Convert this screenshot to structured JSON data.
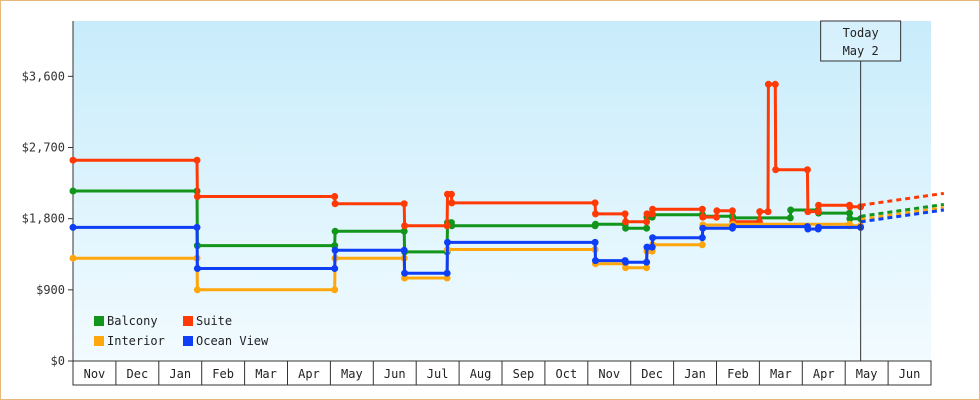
{
  "chart_data": {
    "type": "line",
    "title": "",
    "xlabel": "",
    "ylabel": "",
    "ylim": [
      0,
      4300
    ],
    "y_ticks": [
      {
        "value": 0,
        "label": "$0"
      },
      {
        "value": 900,
        "label": "$900"
      },
      {
        "value": 1800,
        "label": "$1,800"
      },
      {
        "value": 2700,
        "label": "$2,700"
      },
      {
        "value": 3600,
        "label": "$3,600"
      }
    ],
    "x_domain": [
      0,
      20
    ],
    "x_unit": "months from start of Nov (year 1)",
    "months": [
      "Nov",
      "Dec",
      "Jan",
      "Feb",
      "Mar",
      "Apr",
      "May",
      "Jun",
      "Jul",
      "Aug",
      "Sep",
      "Oct",
      "Nov",
      "Dec",
      "Jan",
      "Feb",
      "Mar",
      "Apr",
      "May",
      "Jun"
    ],
    "today": {
      "x": 18.36,
      "line1": "Today",
      "line2": "May 2"
    },
    "legend": {
      "position": "bottom-left"
    },
    "grid": false,
    "series": [
      {
        "name": "Balcony",
        "color": "#11951b",
        "points": [
          [
            0,
            2150
          ],
          [
            2.89,
            2150
          ],
          [
            2.9,
            1460
          ],
          [
            6.1,
            1460
          ],
          [
            6.11,
            1640
          ],
          [
            7.72,
            1640
          ],
          [
            7.73,
            1380
          ],
          [
            8.72,
            1380
          ],
          [
            8.73,
            1750
          ],
          [
            8.82,
            1750
          ],
          [
            8.83,
            1710
          ],
          [
            12.17,
            1710
          ],
          [
            12.18,
            1730
          ],
          [
            12.87,
            1730
          ],
          [
            12.88,
            1680
          ],
          [
            13.37,
            1680
          ],
          [
            13.38,
            1820
          ],
          [
            13.5,
            1820
          ],
          [
            13.51,
            1850
          ],
          [
            14.67,
            1850
          ],
          [
            14.68,
            1830
          ],
          [
            15.37,
            1830
          ],
          [
            15.38,
            1810
          ],
          [
            16.72,
            1810
          ],
          [
            16.73,
            1910
          ],
          [
            17.37,
            1910
          ],
          [
            17.38,
            1870
          ],
          [
            18.1,
            1870
          ],
          [
            18.11,
            1800
          ],
          [
            18.36,
            1800
          ]
        ],
        "projection": [
          [
            18.36,
            1830
          ],
          [
            20.3,
            1980
          ]
        ]
      },
      {
        "name": "Suite",
        "color": "#ff3a05",
        "points": [
          [
            0,
            2540
          ],
          [
            2.89,
            2540
          ],
          [
            2.9,
            2080
          ],
          [
            6.1,
            2080
          ],
          [
            6.11,
            1990
          ],
          [
            7.72,
            1990
          ],
          [
            7.73,
            1710
          ],
          [
            8.72,
            1710
          ],
          [
            8.73,
            2110
          ],
          [
            8.82,
            2110
          ],
          [
            8.83,
            2000
          ],
          [
            12.17,
            2000
          ],
          [
            12.18,
            1860
          ],
          [
            12.87,
            1860
          ],
          [
            12.88,
            1760
          ],
          [
            13.37,
            1760
          ],
          [
            13.38,
            1860
          ],
          [
            13.5,
            1860
          ],
          [
            13.51,
            1920
          ],
          [
            14.67,
            1920
          ],
          [
            14.68,
            1820
          ],
          [
            15.0,
            1820
          ],
          [
            15.01,
            1900
          ],
          [
            15.37,
            1900
          ],
          [
            15.38,
            1760
          ],
          [
            16.0,
            1760
          ],
          [
            16.01,
            1890
          ],
          [
            16.2,
            1890
          ],
          [
            16.21,
            3500
          ],
          [
            16.37,
            3500
          ],
          [
            16.38,
            2420
          ],
          [
            17.12,
            2420
          ],
          [
            17.13,
            1890
          ],
          [
            17.37,
            1890
          ],
          [
            17.38,
            1970
          ],
          [
            18.1,
            1970
          ],
          [
            18.11,
            1950
          ],
          [
            18.36,
            1950
          ]
        ],
        "projection": [
          [
            18.36,
            1970
          ],
          [
            20.3,
            2120
          ]
        ]
      },
      {
        "name": "Interior",
        "color": "#ffa60c",
        "points": [
          [
            0,
            1300
          ],
          [
            2.89,
            1300
          ],
          [
            2.9,
            900
          ],
          [
            6.1,
            900
          ],
          [
            6.11,
            1300
          ],
          [
            7.72,
            1300
          ],
          [
            7.73,
            1050
          ],
          [
            8.72,
            1050
          ],
          [
            8.73,
            1410
          ],
          [
            12.17,
            1410
          ],
          [
            12.18,
            1230
          ],
          [
            12.87,
            1230
          ],
          [
            12.88,
            1180
          ],
          [
            13.37,
            1180
          ],
          [
            13.38,
            1390
          ],
          [
            13.5,
            1390
          ],
          [
            13.51,
            1470
          ],
          [
            14.67,
            1470
          ],
          [
            14.68,
            1720
          ],
          [
            15.37,
            1720
          ],
          [
            15.38,
            1730
          ],
          [
            18.1,
            1730
          ],
          [
            18.11,
            1710
          ],
          [
            18.36,
            1710
          ]
        ],
        "projection": [
          [
            18.36,
            1790
          ],
          [
            20.3,
            1940
          ]
        ]
      },
      {
        "name": "Ocean View",
        "color": "#0e3ef5",
        "points": [
          [
            0,
            1690
          ],
          [
            2.89,
            1690
          ],
          [
            2.9,
            1170
          ],
          [
            6.1,
            1170
          ],
          [
            6.11,
            1400
          ],
          [
            7.72,
            1400
          ],
          [
            7.73,
            1110
          ],
          [
            8.72,
            1110
          ],
          [
            8.73,
            1500
          ],
          [
            12.17,
            1500
          ],
          [
            12.18,
            1270
          ],
          [
            12.87,
            1270
          ],
          [
            12.88,
            1250
          ],
          [
            13.37,
            1250
          ],
          [
            13.38,
            1440
          ],
          [
            13.5,
            1440
          ],
          [
            13.51,
            1560
          ],
          [
            14.67,
            1560
          ],
          [
            14.68,
            1680
          ],
          [
            15.37,
            1680
          ],
          [
            15.38,
            1700
          ],
          [
            17.12,
            1700
          ],
          [
            17.13,
            1670
          ],
          [
            17.37,
            1670
          ],
          [
            17.38,
            1690
          ],
          [
            18.36,
            1690
          ]
        ],
        "projection": [
          [
            18.36,
            1760
          ],
          [
            20.3,
            1910
          ]
        ]
      }
    ]
  }
}
